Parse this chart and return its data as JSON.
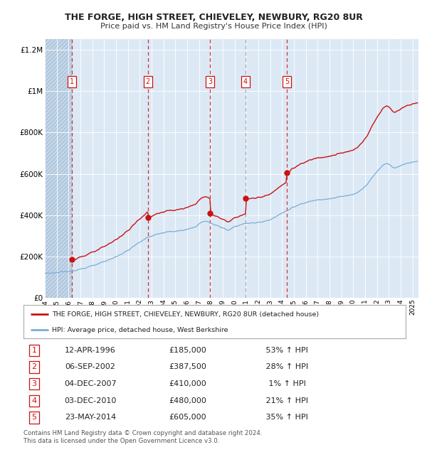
{
  "title": "THE FORGE, HIGH STREET, CHIEVELEY, NEWBURY, RG20 8UR",
  "subtitle": "Price paid vs. HM Land Registry's House Price Index (HPI)",
  "legend_line1": "THE FORGE, HIGH STREET, CHIEVELEY, NEWBURY, RG20 8UR (detached house)",
  "legend_line2": "HPI: Average price, detached house, West Berkshire",
  "footer1": "Contains HM Land Registry data © Crown copyright and database right 2024.",
  "footer2": "This data is licensed under the Open Government Licence v3.0.",
  "hpi_color": "#7aadd4",
  "price_color": "#cc1111",
  "bg_color": "#dce9f5",
  "grid_color": "#ffffff",
  "purchases": [
    {
      "num": 1,
      "date_label": "12-APR-1996",
      "year": 1996.28,
      "price": 185000,
      "pct": "53%",
      "dir": "↑"
    },
    {
      "num": 2,
      "date_label": "06-SEP-2002",
      "year": 2002.68,
      "price": 387500,
      "pct": "28%",
      "dir": "↑"
    },
    {
      "num": 3,
      "date_label": "04-DEC-2007",
      "year": 2007.92,
      "price": 410000,
      "pct": "1%",
      "dir": "↑"
    },
    {
      "num": 4,
      "date_label": "03-DEC-2010",
      "year": 2010.92,
      "price": 480000,
      "pct": "21%",
      "dir": "↑"
    },
    {
      "num": 5,
      "date_label": "23-MAY-2014",
      "year": 2014.39,
      "price": 605000,
      "pct": "35%",
      "dir": "↑"
    }
  ],
  "ylim": [
    0,
    1250000
  ],
  "xlim_start": 1994.0,
  "xlim_end": 2025.5,
  "yticks": [
    0,
    200000,
    400000,
    600000,
    800000,
    1000000,
    1200000
  ],
  "ytick_labels": [
    "£0",
    "£200K",
    "£400K",
    "£600K",
    "£800K",
    "£1M",
    "£1.2M"
  ]
}
